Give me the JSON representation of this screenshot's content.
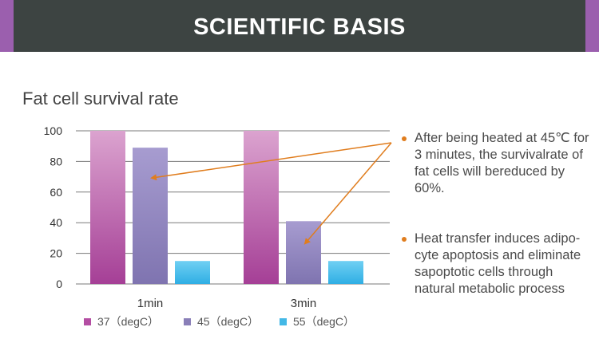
{
  "header": {
    "title": "SCIENTIFIC BASIS"
  },
  "chart_data": {
    "type": "bar",
    "title": "Fat cell survival rate",
    "categories": [
      "1min",
      "3min"
    ],
    "series": [
      {
        "name": "37（degC）",
        "values": [
          100,
          100
        ],
        "color": "#b44ea3"
      },
      {
        "name": "45（degC）",
        "values": [
          89,
          41
        ],
        "color": "#8a7fb8"
      },
      {
        "name": "55（degC）",
        "values": [
          15,
          15
        ],
        "color": "#43b8e6"
      }
    ],
    "yticks": [
      0,
      20,
      40,
      60,
      80,
      100
    ],
    "ylim": [
      0,
      100
    ],
    "grid": true,
    "legend": "bottom"
  },
  "notes": [
    {
      "text": "After being heated at 45℃ for 3 minutes, the survivalrate of fat cells will bereduced by 60%."
    },
    {
      "text": "Heat transfer induces adipo-cyte apoptosis and eliminate sapoptotic cells through natural metabolic process"
    }
  ],
  "colors": {
    "accent": "#9b5fae",
    "banner": "#3d4442",
    "arrow": "#e07d1e"
  }
}
